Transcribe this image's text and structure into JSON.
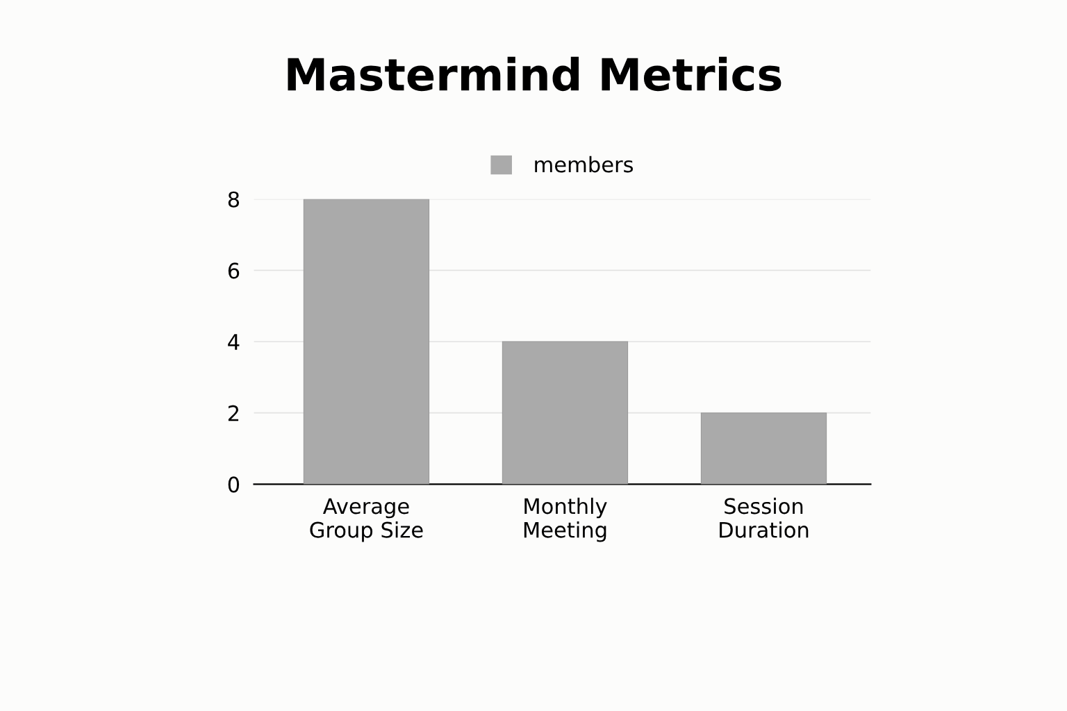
{
  "chart_data": {
    "type": "bar",
    "title": "Mastermind Metrics",
    "categories": [
      "Average\nGroup Size",
      "Monthly\nMeeting",
      "Session\nDuration"
    ],
    "series": [
      {
        "name": "members",
        "color": "#aaaaaa",
        "values": [
          8,
          4,
          2
        ]
      }
    ],
    "ylim": [
      0,
      8
    ],
    "yticks": [
      0,
      2,
      4,
      6,
      8
    ],
    "grid": "y",
    "legend": "top"
  }
}
